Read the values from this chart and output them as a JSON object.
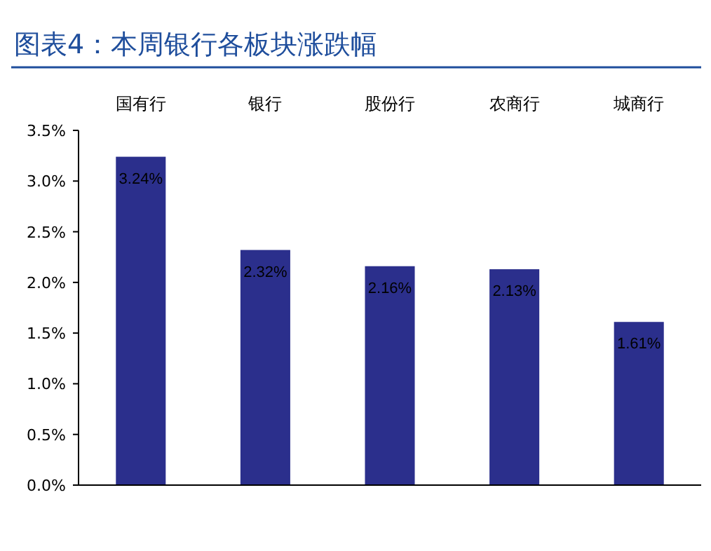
{
  "chart_data": {
    "type": "bar",
    "title": "图表4：本周银行各板块涨跌幅",
    "categories": [
      "国有行",
      "银行",
      "股份行",
      "农商行",
      "城商行"
    ],
    "values": [
      3.24,
      2.32,
      2.16,
      2.13,
      1.61
    ],
    "value_labels": [
      "3.24%",
      "2.32%",
      "2.16%",
      "2.13%",
      "1.61%"
    ],
    "color": "#2b2f8c",
    "ylim": [
      0,
      3.5
    ],
    "yticks": [
      {
        "value": 0,
        "label": "0.0%"
      },
      {
        "value": 0.5,
        "label": "0.5%"
      },
      {
        "value": 1,
        "label": "1.0%"
      },
      {
        "value": 1.5,
        "label": "1.5%"
      },
      {
        "value": 2,
        "label": "2.0%"
      },
      {
        "value": 2.5,
        "label": "2.5%"
      },
      {
        "value": 3,
        "label": "3.0%"
      },
      {
        "value": 3.5,
        "label": "3.5%"
      }
    ],
    "grid": false
  }
}
